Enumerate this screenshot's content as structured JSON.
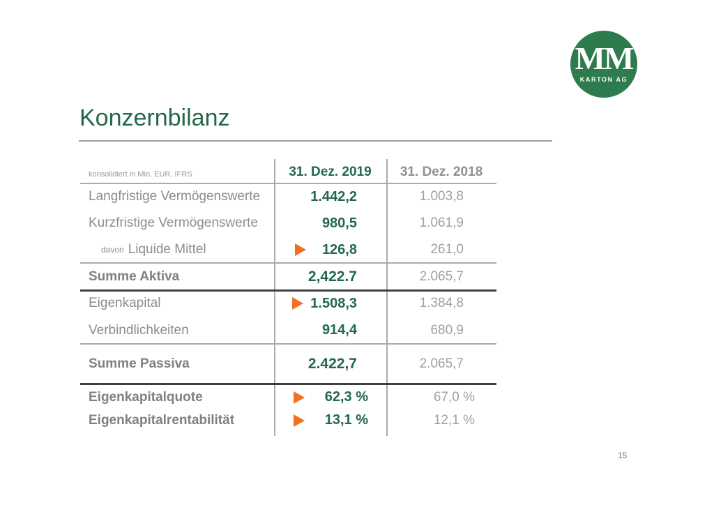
{
  "slide": {
    "title": "Konzernbilanz",
    "page_number": "15"
  },
  "logo": {
    "monogram": "MM",
    "subtitle": "KARTON AG"
  },
  "table": {
    "unit_note": "konsolidiert in Mio. EUR, IFRS",
    "columns": [
      "31. Dez. 2019",
      "31. Dez. 2018"
    ],
    "rows": [
      {
        "label": "Langfristige Vermögenswerte",
        "prefix": "",
        "v2019": "1.442,2",
        "v2018": "1.003,8",
        "kind": "normal",
        "arrow": false
      },
      {
        "label": "Kurzfristige Vermögenswerte",
        "prefix": "",
        "v2019": "980,5",
        "v2018": "1.061,9",
        "kind": "normal",
        "arrow": false
      },
      {
        "label": "Liquide Mittel",
        "prefix": "davon",
        "v2019": "126,8",
        "v2018": "261,0",
        "kind": "davon",
        "arrow": true
      },
      {
        "label": "Summe Aktiva",
        "prefix": "",
        "v2019": "2,422.7",
        "v2018": "2.065,7",
        "kind": "sum",
        "arrow": false
      },
      {
        "label": "Eigenkapital",
        "prefix": "",
        "v2019": "1.508,3",
        "v2018": "1.384,8",
        "kind": "normal",
        "arrow": true
      },
      {
        "label": "Verbindlichkeiten",
        "prefix": "",
        "v2019": "914,4",
        "v2018": "680,9",
        "kind": "normal",
        "arrow": false
      },
      {
        "label": "Summe Passiva",
        "prefix": "",
        "v2019": "2.422,7",
        "v2018": "2.065,7",
        "kind": "sum",
        "arrow": false
      },
      {
        "label": "Eigenkapitalquote",
        "prefix": "",
        "v2019": "62,3 %",
        "v2018": "67,0 %",
        "kind": "ratio",
        "arrow": true
      },
      {
        "label": "Eigenkapitalrentabilität",
        "prefix": "",
        "v2019": "13,1 %",
        "v2018": "12,1 %",
        "kind": "ratio",
        "arrow": true
      }
    ]
  },
  "icons": {
    "highlight_arrow": "orange-right-triangle"
  },
  "colors": {
    "green": "#23684a",
    "logo_green": "#2e7b4e",
    "orange": "#f36f21",
    "line_gray": "#a9abae",
    "line_dark": "#3e3f41",
    "label_gray": "#8a8c8e",
    "value_gray_2018": "#9ea0a3"
  }
}
